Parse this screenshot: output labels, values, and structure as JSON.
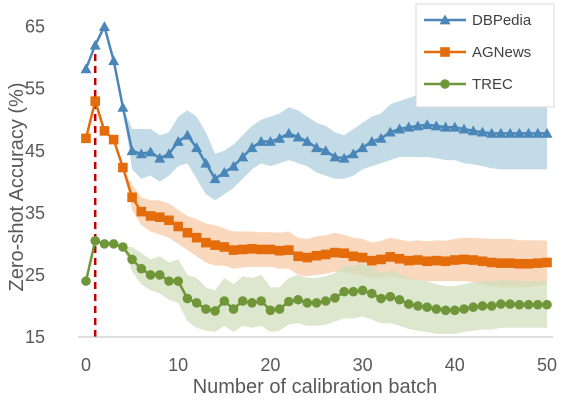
{
  "chart_data": {
    "type": "line",
    "title": "",
    "xlabel": "Number of calibration batch",
    "ylabel": "Zero-shot Accuracy (%)",
    "xlim": [
      0,
      50
    ],
    "ylim": [
      15,
      68
    ],
    "xticks": [
      0,
      10,
      20,
      30,
      40,
      50
    ],
    "yticks": [
      15,
      25,
      35,
      45,
      55,
      65
    ],
    "grid": false,
    "legend_position": "top-right",
    "reference_line": {
      "x": 1,
      "style": "dashed",
      "color": "#c00000"
    },
    "x": [
      0,
      1,
      2,
      3,
      4,
      5,
      6,
      7,
      8,
      9,
      10,
      11,
      12,
      13,
      14,
      15,
      16,
      17,
      18,
      19,
      20,
      21,
      22,
      23,
      24,
      25,
      26,
      27,
      28,
      29,
      30,
      31,
      32,
      33,
      34,
      35,
      36,
      37,
      38,
      39,
      40,
      41,
      42,
      43,
      44,
      45,
      46,
      47,
      48,
      49,
      50
    ],
    "series": [
      {
        "name": "DBPedia",
        "color": "#4a86b8",
        "band_color": "#aecfdd",
        "marker": "triangle",
        "values": [
          58.2,
          62.0,
          65.0,
          59.5,
          52.0,
          45.0,
          44.5,
          44.8,
          43.8,
          44.5,
          46.5,
          47.5,
          45.5,
          43.0,
          40.5,
          41.5,
          42.5,
          44.0,
          45.5,
          46.5,
          46.5,
          47.0,
          47.8,
          47.2,
          46.5,
          45.5,
          45.0,
          44.0,
          43.8,
          44.5,
          45.5,
          46.5,
          47.0,
          48.0,
          48.5,
          48.8,
          49.0,
          49.2,
          49.0,
          48.8,
          48.8,
          48.5,
          48.2,
          48.0,
          47.8,
          47.8,
          47.8,
          47.8,
          47.8,
          47.8,
          47.8
        ],
        "lower": [
          58.2,
          62.0,
          65.0,
          59.5,
          52.0,
          42.0,
          40.5,
          41.0,
          40.0,
          41.0,
          42.5,
          43.0,
          40.5,
          38.0,
          37.0,
          38.0,
          39.0,
          40.5,
          42.0,
          43.0,
          42.5,
          43.0,
          43.5,
          43.0,
          42.5,
          41.5,
          41.0,
          40.5,
          40.5,
          41.0,
          42.0,
          42.5,
          43.0,
          43.5,
          44.0,
          44.0,
          44.0,
          44.0,
          43.8,
          43.5,
          43.5,
          43.0,
          42.8,
          42.5,
          42.2,
          42.0,
          42.0,
          42.0,
          42.0,
          42.0,
          42.0
        ],
        "upper": [
          58.2,
          62.0,
          65.0,
          59.5,
          52.0,
          48.5,
          48.5,
          48.5,
          47.5,
          48.0,
          50.5,
          51.5,
          50.5,
          48.0,
          44.5,
          45.0,
          46.0,
          47.5,
          49.0,
          50.0,
          50.5,
          51.0,
          52.0,
          51.5,
          50.5,
          49.5,
          49.0,
          48.0,
          47.5,
          48.5,
          49.5,
          50.5,
          51.0,
          52.5,
          53.0,
          53.5,
          54.0,
          54.5,
          54.2,
          54.0,
          54.0,
          53.8,
          53.5,
          53.3,
          53.2,
          53.2,
          53.2,
          53.2,
          53.2,
          53.2,
          53.2
        ]
      },
      {
        "name": "AGNews",
        "color": "#e46c0a",
        "band_color": "#f8cba8",
        "marker": "square",
        "values": [
          47.0,
          53.0,
          48.2,
          46.8,
          42.3,
          37.5,
          35.2,
          34.5,
          34.3,
          33.8,
          32.8,
          31.8,
          31.0,
          30.2,
          29.8,
          29.5,
          29.0,
          29.1,
          29.2,
          29.1,
          29.1,
          28.9,
          29.0,
          28.0,
          27.8,
          28.1,
          28.3,
          28.6,
          28.5,
          28.0,
          27.8,
          27.3,
          27.5,
          27.9,
          27.6,
          27.3,
          27.4,
          27.2,
          27.3,
          27.2,
          27.4,
          27.5,
          27.4,
          27.2,
          27.0,
          26.9,
          26.9,
          26.8,
          26.8,
          26.9,
          27.0
        ],
        "lower": [
          47.0,
          53.0,
          48.2,
          46.8,
          42.3,
          35.5,
          33.0,
          32.0,
          31.5,
          31.0,
          30.0,
          29.0,
          28.0,
          27.0,
          26.5,
          26.5,
          26.0,
          26.2,
          26.3,
          26.3,
          26.3,
          26.0,
          26.0,
          25.0,
          24.8,
          25.0,
          25.2,
          25.5,
          25.5,
          25.0,
          24.8,
          24.5,
          24.5,
          24.8,
          24.5,
          24.2,
          24.2,
          24.0,
          24.0,
          24.0,
          24.0,
          24.0,
          23.8,
          23.5,
          23.2,
          23.0,
          23.0,
          23.0,
          23.0,
          23.2,
          23.5
        ],
        "upper": [
          47.0,
          53.0,
          48.2,
          46.8,
          42.3,
          39.5,
          37.5,
          37.0,
          37.0,
          36.5,
          35.5,
          34.5,
          34.0,
          33.3,
          33.0,
          32.5,
          32.0,
          32.0,
          32.0,
          31.9,
          31.9,
          31.8,
          32.0,
          31.0,
          30.8,
          31.2,
          31.4,
          31.8,
          31.5,
          31.0,
          30.8,
          30.2,
          30.5,
          31.0,
          30.7,
          30.4,
          30.6,
          30.4,
          30.6,
          30.5,
          30.8,
          31.0,
          31.0,
          30.9,
          30.8,
          30.8,
          30.8,
          30.6,
          30.6,
          30.6,
          30.5
        ]
      },
      {
        "name": "TREC",
        "color": "#70963a",
        "band_color": "#d2dfbd",
        "marker": "circle",
        "values": [
          24.0,
          30.5,
          30.0,
          30.0,
          29.5,
          27.5,
          26.0,
          25.0,
          25.0,
          24.0,
          24.0,
          21.2,
          20.5,
          19.5,
          19.2,
          20.8,
          19.5,
          20.8,
          20.5,
          20.8,
          19.3,
          19.5,
          20.7,
          21.0,
          20.5,
          20.5,
          20.8,
          21.3,
          22.3,
          22.3,
          22.5,
          22.0,
          21.2,
          21.5,
          21.0,
          20.3,
          20.0,
          19.8,
          19.5,
          19.3,
          19.3,
          19.5,
          19.8,
          20.0,
          20.0,
          20.3,
          20.3,
          20.2,
          20.2,
          20.2,
          20.2
        ],
        "lower": [
          24.0,
          30.5,
          30.0,
          30.0,
          29.5,
          25.5,
          23.5,
          22.5,
          22.0,
          21.0,
          20.5,
          17.5,
          16.5,
          16.0,
          15.8,
          16.8,
          15.8,
          16.8,
          16.5,
          16.8,
          15.8,
          16.0,
          17.0,
          17.2,
          16.8,
          16.8,
          17.0,
          17.5,
          18.0,
          18.0,
          18.3,
          17.8,
          17.2,
          17.2,
          16.8,
          16.3,
          16.0,
          15.8,
          15.5,
          15.5,
          15.5,
          15.8,
          16.0,
          16.2,
          16.2,
          16.5,
          16.5,
          16.5,
          16.5,
          16.5,
          16.5
        ],
        "upper": [
          24.0,
          30.5,
          30.0,
          30.0,
          29.5,
          29.5,
          28.5,
          27.5,
          28.0,
          27.0,
          27.5,
          25.0,
          24.5,
          23.0,
          22.5,
          24.5,
          23.5,
          24.8,
          24.5,
          25.0,
          23.0,
          23.0,
          24.5,
          25.0,
          24.5,
          24.5,
          24.8,
          25.3,
          26.5,
          26.5,
          26.8,
          26.3,
          25.3,
          25.8,
          25.3,
          24.5,
          24.2,
          24.0,
          23.5,
          23.2,
          23.2,
          23.5,
          23.8,
          24.0,
          24.0,
          24.2,
          24.2,
          24.0,
          24.0,
          24.0,
          24.0
        ]
      }
    ]
  }
}
